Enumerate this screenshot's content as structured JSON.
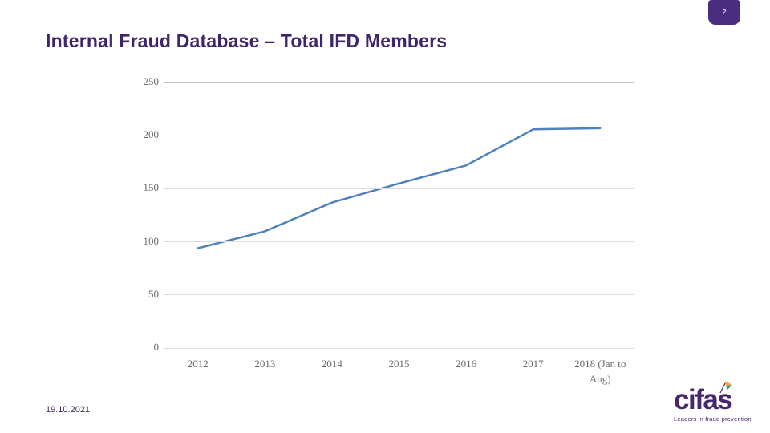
{
  "slide": {
    "page_number": "2",
    "title": "Internal Fraud Database – Total IFD Members",
    "date": "19.10.2021"
  },
  "logo": {
    "text": "cifas",
    "tagline": "Leaders in fraud prevention"
  },
  "colors": {
    "accent_purple": "#3f2569",
    "badge_purple": "#4b2d7f",
    "line_blue": "#4f81bd",
    "gridline": "#dedede",
    "gridline_major": "#c2c2c2",
    "tick_text": "#6b6b6b",
    "logo_purple": "#46276b",
    "flag_orange": "#f0a63c",
    "flag_teal": "#2a9d8f"
  },
  "chart_data": {
    "type": "line",
    "categories": [
      "2012",
      "2013",
      "2014",
      "2015",
      "2016",
      "2017",
      "2018 (Jan to Aug)"
    ],
    "values": [
      94,
      110,
      137,
      155,
      172,
      206,
      207
    ],
    "title": "",
    "xlabel": "",
    "ylabel": "",
    "ylim": [
      0,
      250
    ],
    "yticks": [
      0,
      50,
      100,
      150,
      200,
      250
    ],
    "grid": true,
    "legend_position": "none"
  }
}
